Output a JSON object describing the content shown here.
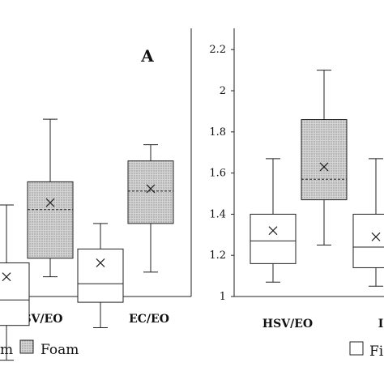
{
  "chart_data": [
    {
      "type": "box",
      "panel_label": "A",
      "categories": [
        "LSV/EO",
        "EC/EO"
      ],
      "legend": [
        {
          "label_fragment": "m",
          "fill": "plain"
        },
        {
          "label": "Foam",
          "fill": "dotted"
        }
      ],
      "boxes": [
        {
          "category_index": 0,
          "group": "Firm",
          "whisker_low": null,
          "q1": null,
          "median": null,
          "q3": null,
          "whisker_high": null,
          "mean": null,
          "partially_visible": true
        },
        {
          "category_index": 0,
          "group": "Foam",
          "whisker_low": 1.36,
          "q1": 1.44,
          "median": 1.65,
          "q3": 1.77,
          "whisker_high": 2.04,
          "mean": 1.68
        },
        {
          "category_index": 1,
          "group": "Firm",
          "whisker_low": 1.14,
          "q1": 1.25,
          "median": 1.33,
          "q3": 1.48,
          "whisker_high": 1.59,
          "mean": 1.42
        },
        {
          "category_index": 1,
          "group": "Foam",
          "whisker_low": 1.38,
          "q1": 1.59,
          "median": 1.73,
          "q3": 1.86,
          "whisker_high": 1.93,
          "mean": 1.74
        }
      ]
    },
    {
      "type": "box",
      "categories": [
        "HSV/EO",
        "I"
      ],
      "ylim": [
        1,
        2.3
      ],
      "yticks": [
        "1",
        "1.2",
        "1.4",
        "1.6",
        "1.8",
        "2",
        "2.2"
      ],
      "legend": [
        {
          "label_fragment": "Fi",
          "fill": "plain"
        }
      ],
      "boxes": [
        {
          "category_index": 0,
          "group": "Firm",
          "whisker_low": 1.07,
          "q1": 1.16,
          "median": 1.27,
          "q3": 1.4,
          "whisker_high": 1.67,
          "mean": 1.32
        },
        {
          "category_index": 0,
          "group": "Foam",
          "whisker_low": 1.25,
          "q1": 1.47,
          "median": 1.57,
          "q3": 1.86,
          "whisker_high": 2.1,
          "mean": 1.63
        },
        {
          "category_index": 1,
          "group": "Firm",
          "whisker_low": 1.05,
          "q1": 1.14,
          "median": 1.24,
          "q3": 1.4,
          "whisker_high": 1.67,
          "mean": 1.29,
          "partially_visible": true
        }
      ]
    }
  ],
  "colors": {
    "stroke": "#222222",
    "plain_fill": "#ffffff",
    "dotted_fill": "#d4d4d4",
    "dot": "#8a8a8a"
  }
}
